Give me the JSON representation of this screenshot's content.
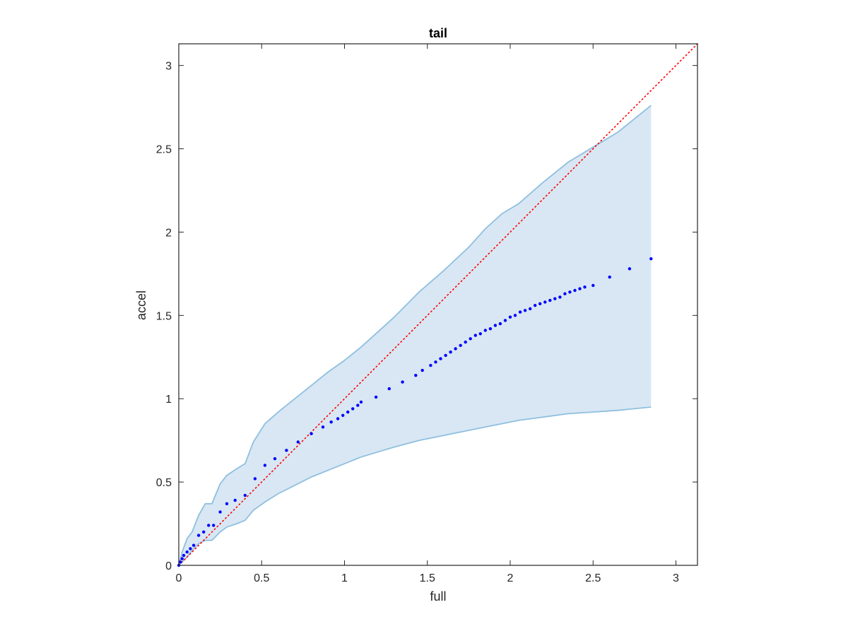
{
  "chart_data": {
    "type": "scatter",
    "title": "tail",
    "xlabel": "full",
    "ylabel": "accel",
    "xlim": [
      0,
      3.13
    ],
    "ylim": [
      0,
      3.13
    ],
    "xticks": [
      "0",
      "0.5",
      "1",
      "1.5",
      "2",
      "2.5",
      "3"
    ],
    "yticks": [
      "0",
      "0.5",
      "1",
      "1.5",
      "2",
      "2.5",
      "3"
    ],
    "grid": false,
    "box": true,
    "colors": {
      "points": "#0000ff",
      "reference": "#ff0000",
      "band_fill": "#d8e7f3",
      "band_edge": "#8fbfe0"
    },
    "series": [
      {
        "type": "scatter",
        "x": [
          0.0,
          0.01,
          0.02,
          0.03,
          0.05,
          0.07,
          0.09,
          0.12,
          0.15,
          0.18,
          0.21,
          0.25,
          0.29,
          0.34,
          0.4,
          0.46,
          0.52,
          0.58,
          0.65,
          0.72,
          0.8,
          0.87,
          0.92,
          0.96,
          0.99,
          1.02,
          1.05,
          1.08,
          1.1,
          1.19,
          1.27,
          1.35,
          1.43,
          1.47,
          1.52,
          1.55,
          1.58,
          1.61,
          1.64,
          1.67,
          1.7,
          1.73,
          1.76,
          1.79,
          1.82,
          1.85,
          1.88,
          1.91,
          1.94,
          1.97,
          2.0,
          2.03,
          2.06,
          2.09,
          2.12,
          2.15,
          2.18,
          2.21,
          2.24,
          2.27,
          2.3,
          2.33,
          2.36,
          2.39,
          2.42,
          2.45,
          2.5,
          2.6,
          2.72,
          2.85
        ],
        "y": [
          0.0,
          0.02,
          0.04,
          0.06,
          0.08,
          0.1,
          0.12,
          0.18,
          0.2,
          0.24,
          0.24,
          0.32,
          0.37,
          0.39,
          0.42,
          0.52,
          0.6,
          0.64,
          0.69,
          0.74,
          0.79,
          0.83,
          0.86,
          0.88,
          0.9,
          0.92,
          0.94,
          0.96,
          0.98,
          1.01,
          1.06,
          1.1,
          1.14,
          1.17,
          1.2,
          1.22,
          1.24,
          1.26,
          1.28,
          1.3,
          1.32,
          1.34,
          1.36,
          1.38,
          1.39,
          1.41,
          1.42,
          1.44,
          1.45,
          1.47,
          1.49,
          1.5,
          1.52,
          1.53,
          1.54,
          1.56,
          1.57,
          1.58,
          1.59,
          1.6,
          1.61,
          1.63,
          1.64,
          1.65,
          1.66,
          1.67,
          1.68,
          1.73,
          1.78,
          1.84
        ]
      },
      {
        "type": "line",
        "style": "dotted",
        "x": [
          0,
          3.13
        ],
        "y": [
          0,
          3.13
        ]
      },
      {
        "type": "band",
        "x": [
          0,
          0.02,
          0.05,
          0.08,
          0.12,
          0.16,
          0.2,
          0.25,
          0.29,
          0.35,
          0.4,
          0.45,
          0.52,
          0.6,
          0.7,
          0.8,
          0.9,
          1.0,
          1.1,
          1.2,
          1.3,
          1.45,
          1.6,
          1.75,
          1.85,
          1.95,
          2.05,
          2.2,
          2.35,
          2.5,
          2.65,
          2.85
        ],
        "upper": [
          0,
          0.08,
          0.16,
          0.2,
          0.3,
          0.37,
          0.37,
          0.49,
          0.54,
          0.58,
          0.61,
          0.74,
          0.85,
          0.92,
          1.0,
          1.08,
          1.16,
          1.23,
          1.31,
          1.4,
          1.49,
          1.64,
          1.77,
          1.91,
          2.02,
          2.11,
          2.17,
          2.3,
          2.42,
          2.51,
          2.6,
          2.76
        ],
        "lower": [
          0,
          0.02,
          0.05,
          0.09,
          0.13,
          0.15,
          0.15,
          0.2,
          0.23,
          0.25,
          0.27,
          0.33,
          0.38,
          0.43,
          0.48,
          0.53,
          0.57,
          0.61,
          0.65,
          0.68,
          0.71,
          0.75,
          0.78,
          0.81,
          0.83,
          0.85,
          0.87,
          0.89,
          0.91,
          0.92,
          0.93,
          0.95
        ]
      }
    ]
  }
}
